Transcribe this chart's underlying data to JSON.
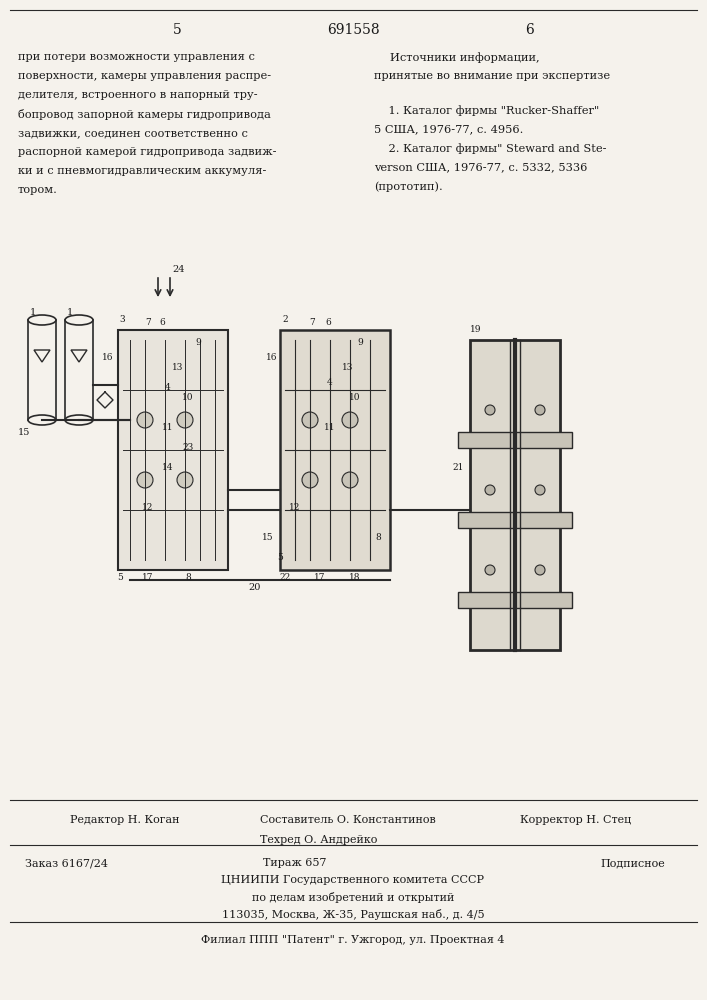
{
  "page_number_left": "5",
  "patent_number": "691558",
  "page_number_right": "6",
  "left_text": [
    "при потери возможности управления с ",
    "поверхности, камеры управления распре-",
    "делителя, встроенного в напорный тру-",
    "бопровод запорной камеры гидропривода",
    "задвижки, соединен соответственно с",
    "распорной камерой гидропривода задвиж-",
    "ки и с пневмогидравлическим аккумуля-",
    "тором."
  ],
  "right_header": "Источники информации,",
  "right_subheader": "принятые во внимание при экспертизе",
  "references": [
    "    1. Каталог фирмы \"Rucker-Shaffer\"",
    "5 США, 1976-77, с. 4956.",
    "    2. Каталог фирмы\" Steward and Ste-",
    "verson США, 1976-77, с. 5332, 5336",
    "(прототип)."
  ],
  "bottom_left": "Редактор Н. Коган",
  "bottom_center_top": "Составитель О. Константинов",
  "bottom_center_mid": "Техред О. Андрейко",
  "bottom_right": "Корректор Н. Стец",
  "order_left": "Заказ 6167/24",
  "order_center": "Тираж 657",
  "order_right": "Подписное",
  "institute_line1": "ЦНИИПИ Государственного комитета СССР",
  "institute_line2": "по делам изобретений и открытий",
  "institute_line3": "113035, Москва, Ж-35, Раушская наб., д. 4/5",
  "filial_line": "Филиал ППП \"Патент\" г. Ужгород, ул. Проектная 4",
  "bg_color": "#f5f2ec",
  "text_color": "#1a1a1a",
  "line_color": "#2a2a2a"
}
